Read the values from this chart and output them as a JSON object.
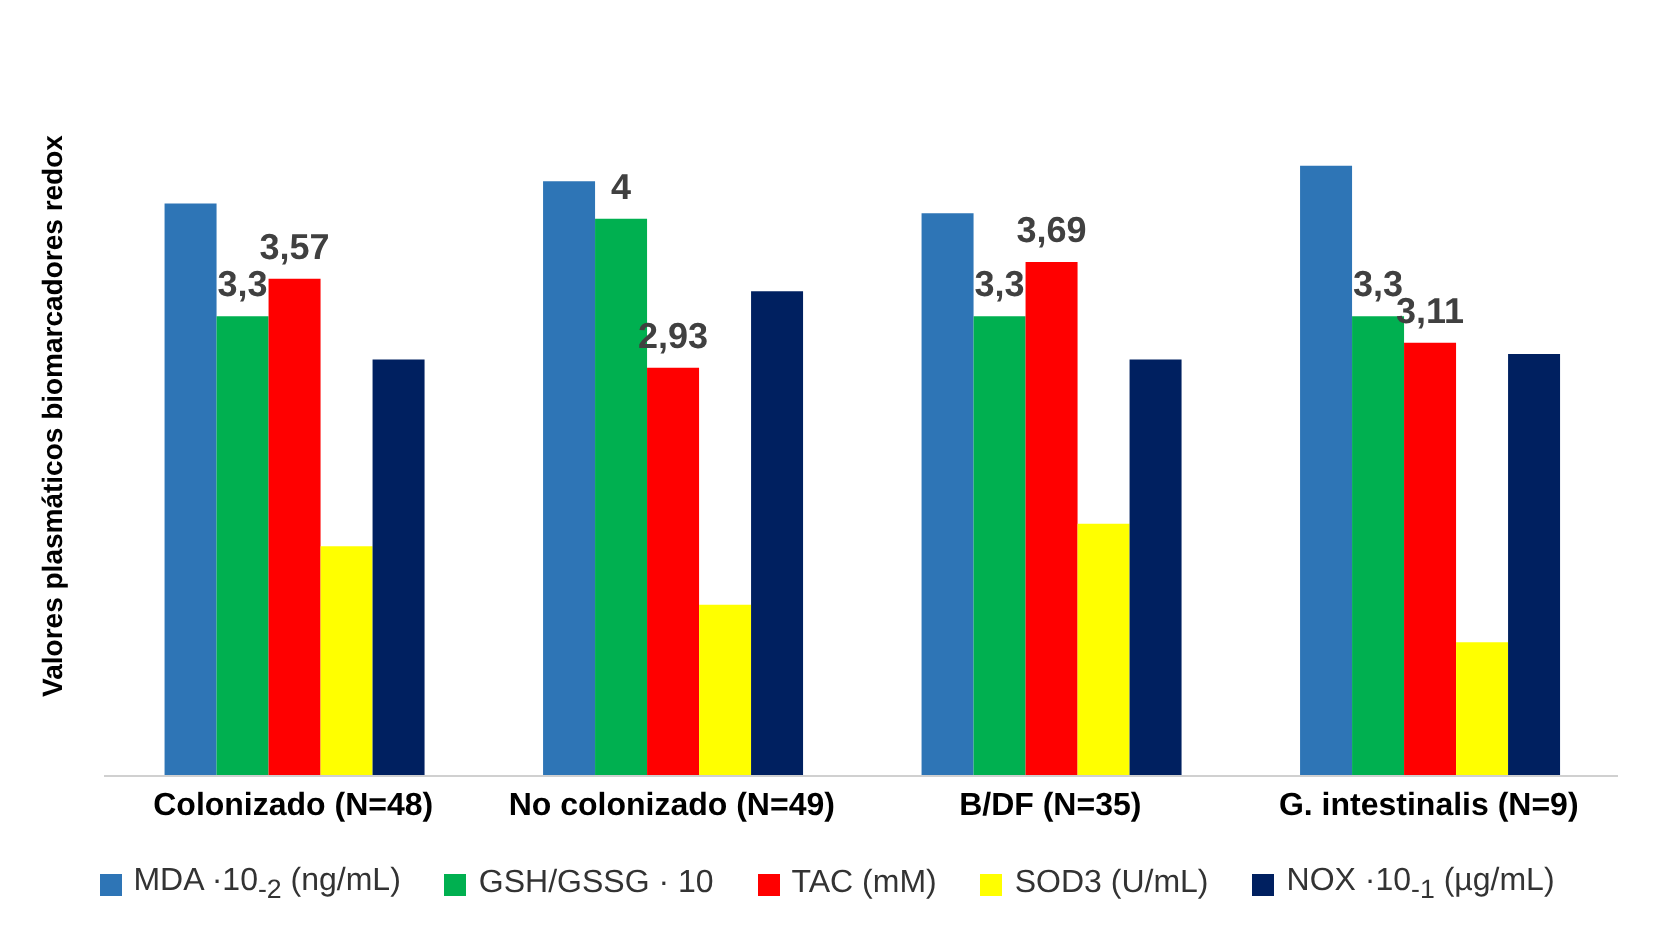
{
  "chart_data": {
    "type": "bar",
    "ylabel": "Valores plasmáticos biomarcadores redox",
    "categories": [
      "Colonizado  (N=48)",
      "No colonizado  (N=49)",
      "B/DF (N=35)",
      "G. intestinalis (N=9)"
    ],
    "series": [
      {
        "name": "MDA ·10$_{-2}$ (ng/mL)",
        "color": "#2e75b6",
        "values": [
          4.11,
          4.27,
          4.04,
          4.38
        ]
      },
      {
        "name": "GSH/GSSG · 10",
        "color": "#00b050",
        "values": [
          3.3,
          4,
          3.3,
          3.3
        ],
        "value_labels": [
          "3,3",
          "4",
          "3,3",
          "3,3"
        ]
      },
      {
        "name": "TAC (mM)",
        "color": "#ff0000",
        "values": [
          3.57,
          2.93,
          3.69,
          3.11
        ],
        "value_labels": [
          "3,57",
          "2,93",
          "3,69",
          "3,11"
        ]
      },
      {
        "name": "SOD3 (U/mL)",
        "color": "#ffff00",
        "values": [
          1.65,
          1.23,
          1.81,
          0.96
        ]
      },
      {
        "name": "NOX ·10$_{-1}$ (µg/mL)",
        "color": "#002060",
        "values": [
          2.99,
          3.48,
          2.99,
          3.03
        ]
      }
    ],
    "tick_labels": "x",
    "legend": "bottom",
    "grid": false
  }
}
